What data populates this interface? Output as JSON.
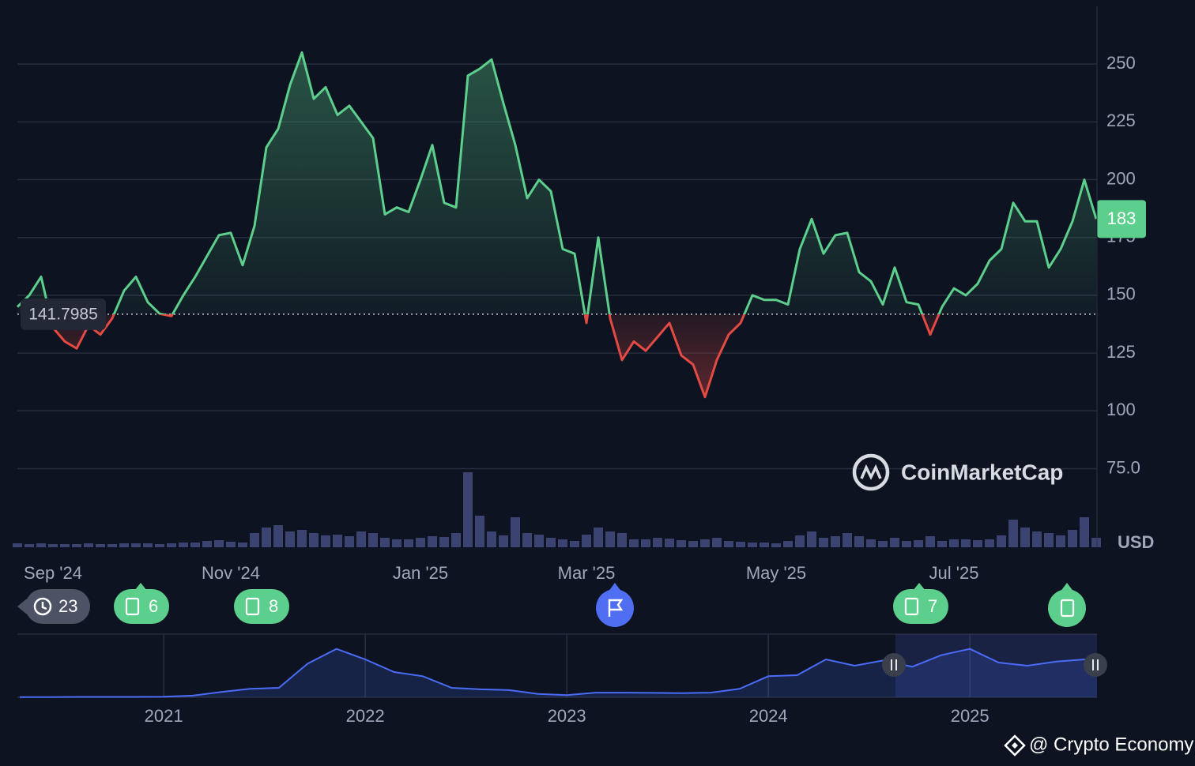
{
  "chart_data": [
    {
      "type": "line",
      "categories": [
        null,
        null,
        null,
        "Sep '24",
        null,
        null,
        null,
        null,
        null,
        null,
        null,
        null,
        null,
        null,
        null,
        null,
        null,
        null,
        "Nov '24",
        null,
        null,
        null,
        null,
        null,
        null,
        null,
        null,
        null,
        null,
        null,
        null,
        null,
        null,
        null,
        "Jan '25",
        null,
        null,
        null,
        null,
        null,
        null,
        null,
        null,
        null,
        null,
        null,
        null,
        null,
        "Mar '25",
        null,
        null,
        null,
        null,
        null,
        null,
        null,
        null,
        null,
        null,
        null,
        null,
        null,
        null,
        null,
        "May '25",
        null,
        null,
        null,
        null,
        null,
        null,
        null,
        null,
        null,
        null,
        null,
        null,
        null,
        null,
        "Jul '25",
        null,
        null,
        null,
        null,
        null,
        null,
        null,
        null,
        null,
        null,
        null,
        null
      ],
      "values": [
        145,
        150,
        158,
        136,
        130,
        127,
        137,
        133,
        140,
        152,
        158,
        147,
        142,
        141,
        150,
        158,
        167,
        176,
        177,
        163,
        180,
        214,
        222,
        241,
        255,
        235,
        240,
        228,
        232,
        225,
        218,
        185,
        188,
        186,
        200,
        215,
        190,
        188,
        245,
        248,
        252,
        233,
        215,
        192,
        200,
        195,
        170,
        168,
        138,
        175,
        140,
        122,
        130,
        126,
        132,
        138,
        124,
        120,
        106,
        122,
        133,
        138,
        150,
        148,
        148,
        146,
        170,
        183,
        168,
        176,
        177,
        160,
        156,
        146,
        162,
        147,
        146,
        133,
        145,
        153,
        150,
        155,
        165,
        170,
        190,
        182,
        182,
        162,
        170,
        182,
        200,
        183
      ],
      "volume": [
        5,
        4,
        5,
        4,
        4,
        4,
        5,
        4,
        4,
        5,
        5,
        5,
        4,
        5,
        6,
        6,
        8,
        9,
        7,
        6,
        18,
        25,
        28,
        20,
        22,
        18,
        15,
        16,
        14,
        20,
        18,
        12,
        10,
        10,
        12,
        14,
        13,
        18,
        95,
        40,
        20,
        15,
        38,
        18,
        16,
        12,
        10,
        8,
        16,
        25,
        20,
        18,
        10,
        10,
        12,
        11,
        9,
        8,
        10,
        12,
        8,
        7,
        6,
        6,
        5,
        8,
        15,
        20,
        12,
        14,
        18,
        14,
        10,
        8,
        12,
        8,
        9,
        14,
        8,
        10,
        10,
        9,
        10,
        15,
        35,
        25,
        20,
        18,
        15,
        22,
        38,
        12
      ],
      "volume_lim": [
        0,
        100
      ],
      "volume_color": "#3b4370",
      "baseline": 141.7985,
      "color_above": "#5dcf8c",
      "color_below": "#e34a43",
      "ylim": [
        41,
        275
      ],
      "yticks": [
        {
          "value": 75,
          "label": "75.0"
        },
        100,
        125,
        150,
        175,
        200,
        225,
        250
      ],
      "y_axis_label": "USD",
      "grid": true
    },
    {
      "type": "area",
      "categories": [
        null,
        null,
        null,
        null,
        null,
        "2021",
        null,
        null,
        null,
        null,
        null,
        null,
        "2022",
        null,
        null,
        null,
        null,
        null,
        null,
        "2023",
        null,
        null,
        null,
        null,
        null,
        null,
        "2024",
        null,
        null,
        null,
        null,
        null,
        null,
        "2025",
        null,
        null,
        null,
        null
      ],
      "values": [
        1,
        1,
        2,
        2,
        2,
        3,
        8,
        25,
        40,
        45,
        160,
        230,
        180,
        120,
        100,
        45,
        38,
        34,
        16,
        10,
        22,
        22,
        21,
        20,
        22,
        40,
        100,
        105,
        180,
        150,
        175,
        145,
        200,
        230,
        165,
        150,
        170,
        180
      ],
      "ylim": [
        0,
        300
      ],
      "color": "#4a6cf7"
    }
  ],
  "events": [
    23,
    6,
    8,
    null,
    7,
    null
  ],
  "watermark": "CoinMarketCap",
  "credit": "@ Crypto Economy"
}
